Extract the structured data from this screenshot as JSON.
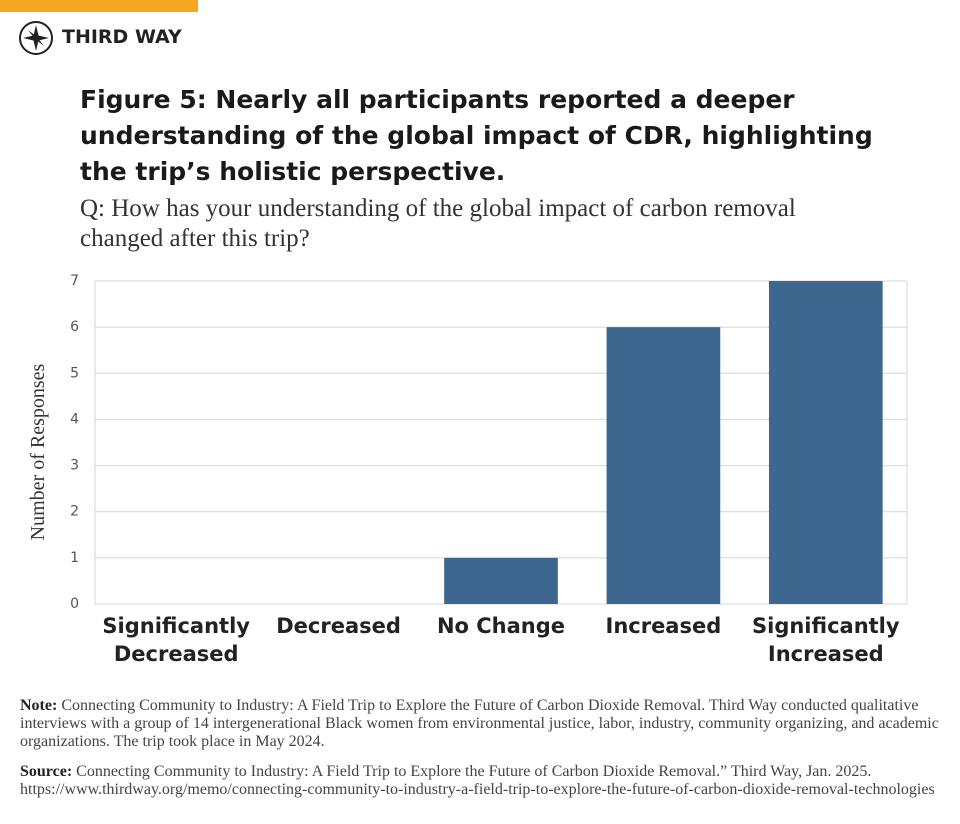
{
  "brand": "THIRD WAY",
  "chart_data": {
    "type": "bar",
    "title": "Figure 5: Nearly all participants reported a deeper understanding of the global impact of CDR, highlighting the trip’s holistic perspective.",
    "subtitle": "Q: How has your understanding of the global impact of carbon removal changed after this trip?",
    "y_label": "Number of Responses",
    "categories": [
      "Significantly Decreased",
      "Decreased",
      "No Change",
      "Increased",
      "Significantly Increased"
    ],
    "values": [
      0,
      0,
      1,
      6,
      7
    ],
    "color": "#3d678e",
    "ylim": [
      0,
      7
    ],
    "yticks": [
      0,
      1,
      2,
      3,
      4,
      5,
      6,
      7
    ],
    "grid": true
  },
  "note": {
    "label": "Note:",
    "text": "Connecting Community to Industry: A Field Trip to Explore the Future of Carbon Dioxide Removal. Third Way conducted qualitative interviews with a group of 14 intergenerational Black women from environmental justice, labor, industry, community organizing, and academic organizations. The trip took place in May 2024."
  },
  "source": {
    "label": "Source:",
    "text": "Connecting Community to Industry: A Field Trip to Explore the Future of Carbon Dioxide Removal.” Third Way, Jan. 2025. https://www.thirdway.org/memo/connecting-community-to-industry-a-field-trip-to-explore-the-future-of-carbon-dioxide-removal-technologies"
  }
}
